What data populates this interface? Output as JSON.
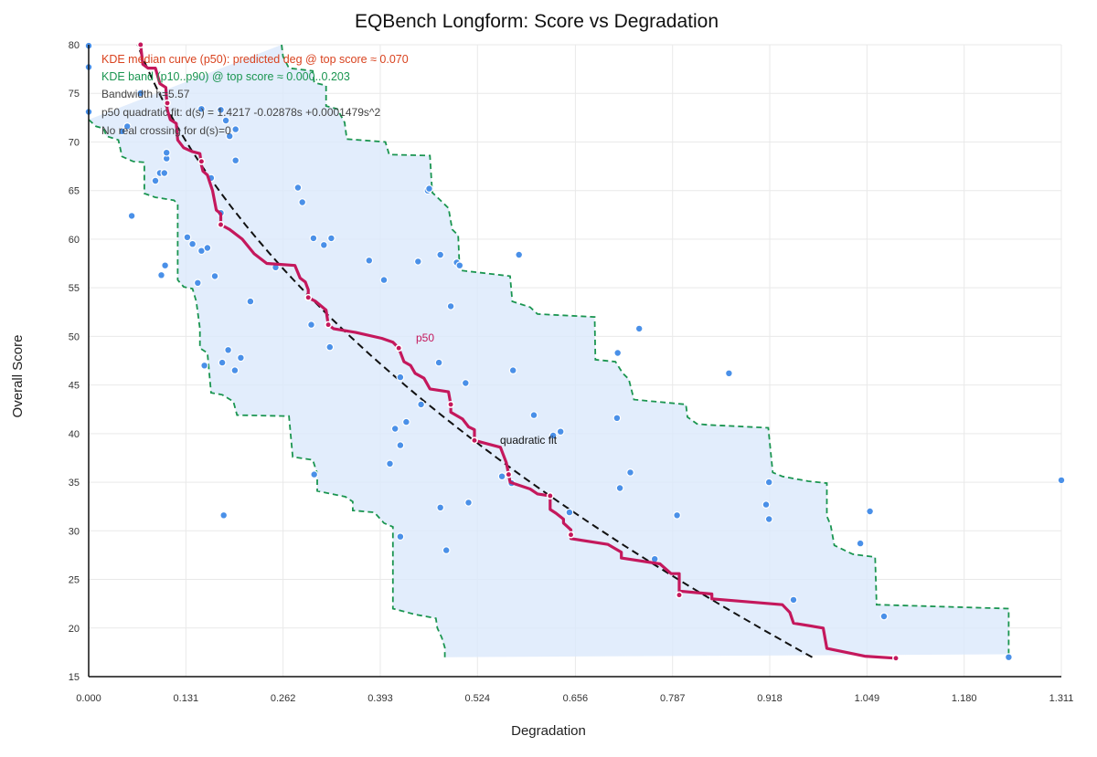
{
  "chart_data": {
    "type": "scatter",
    "title": "EQBench Longform: Score vs Degradation",
    "xlabel": "Degradation",
    "ylabel": "Overall Score",
    "xlim": [
      0,
      1.311
    ],
    "ylim": [
      15,
      80
    ],
    "x_ticks": [
      "0.000",
      "0.131",
      "0.262",
      "0.393",
      "0.524",
      "0.656",
      "0.787",
      "0.918",
      "1.049",
      "1.180",
      "1.311"
    ],
    "y_ticks": [
      "15",
      "20",
      "25",
      "30",
      "35",
      "40",
      "45",
      "50",
      "55",
      "60",
      "65",
      "70",
      "75",
      "80"
    ],
    "grid": true,
    "annotations": {
      "median": "KDE median curve (p50): predicted deg @ top score ≈ 0.070",
      "band": "KDE band (p10..p90) @ top score ≈ 0.000..0.203",
      "bandwidth": "Bandwidth h=5.57",
      "quadratic": "p50 quadratic fit: d(s) = 1.4217 -0.02878s +0.0001479s^2",
      "crossing": "No real crossing for d(s)=0",
      "p50_label": "p50",
      "fit_label": "quadratic fit"
    },
    "fit": {
      "a": 1.4217,
      "b": -0.02878,
      "c": 0.0001479,
      "s_from": 17,
      "s_to": 80
    },
    "points": [
      [
        0.0,
        79.9
      ],
      [
        0.0,
        77.7
      ],
      [
        0.0,
        73.1
      ],
      [
        0.045,
        71.1
      ],
      [
        0.052,
        71.6
      ],
      [
        0.07,
        75.0
      ],
      [
        0.058,
        62.4
      ],
      [
        0.09,
        66.0
      ],
      [
        0.096,
        66.8
      ],
      [
        0.102,
        66.8
      ],
      [
        0.105,
        68.3
      ],
      [
        0.105,
        68.9
      ],
      [
        0.098,
        56.3
      ],
      [
        0.103,
        57.3
      ],
      [
        0.133,
        60.2
      ],
      [
        0.14,
        59.5
      ],
      [
        0.152,
        58.8
      ],
      [
        0.16,
        59.1
      ],
      [
        0.147,
        55.5
      ],
      [
        0.165,
        66.3
      ],
      [
        0.17,
        56.2
      ],
      [
        0.178,
        62.7
      ],
      [
        0.185,
        72.2
      ],
      [
        0.19,
        70.6
      ],
      [
        0.198,
        71.3
      ],
      [
        0.198,
        68.1
      ],
      [
        0.152,
        73.4
      ],
      [
        0.178,
        73.3
      ],
      [
        0.156,
        47.0
      ],
      [
        0.18,
        47.3
      ],
      [
        0.188,
        48.6
      ],
      [
        0.197,
        46.5
      ],
      [
        0.205,
        47.8
      ],
      [
        0.218,
        53.6
      ],
      [
        0.182,
        31.6
      ],
      [
        0.252,
        57.1
      ],
      [
        0.282,
        65.3
      ],
      [
        0.288,
        63.8
      ],
      [
        0.3,
        51.2
      ],
      [
        0.303,
        60.1
      ],
      [
        0.317,
        59.4
      ],
      [
        0.327,
        60.1
      ],
      [
        0.325,
        48.9
      ],
      [
        0.304,
        35.8
      ],
      [
        0.378,
        57.8
      ],
      [
        0.398,
        55.8
      ],
      [
        0.406,
        36.9
      ],
      [
        0.413,
        40.5
      ],
      [
        0.42,
        38.8
      ],
      [
        0.42,
        29.4
      ],
      [
        0.42,
        45.8
      ],
      [
        0.428,
        41.2
      ],
      [
        0.444,
        57.7
      ],
      [
        0.448,
        43.0
      ],
      [
        0.457,
        65.0
      ],
      [
        0.459,
        65.2
      ],
      [
        0.472,
        47.3
      ],
      [
        0.474,
        58.4
      ],
      [
        0.474,
        32.4
      ],
      [
        0.482,
        28.0
      ],
      [
        0.488,
        53.1
      ],
      [
        0.496,
        57.6
      ],
      [
        0.5,
        57.3
      ],
      [
        0.508,
        45.2
      ],
      [
        0.512,
        32.9
      ],
      [
        0.557,
        35.6
      ],
      [
        0.57,
        34.9
      ],
      [
        0.572,
        46.5
      ],
      [
        0.58,
        58.4
      ],
      [
        0.6,
        41.9
      ],
      [
        0.626,
        39.8
      ],
      [
        0.636,
        40.2
      ],
      [
        0.648,
        31.9
      ],
      [
        0.713,
        48.3
      ],
      [
        0.712,
        41.6
      ],
      [
        0.716,
        34.4
      ],
      [
        0.73,
        36.0
      ],
      [
        0.742,
        50.8
      ],
      [
        0.763,
        27.1
      ],
      [
        0.793,
        31.6
      ],
      [
        0.863,
        46.2
      ],
      [
        0.913,
        32.7
      ],
      [
        0.917,
        35.0
      ],
      [
        0.917,
        31.2
      ],
      [
        0.95,
        22.9
      ],
      [
        1.04,
        28.7
      ],
      [
        1.053,
        32.0
      ],
      [
        1.072,
        21.2
      ],
      [
        1.24,
        17.0
      ],
      [
        1.311,
        35.2
      ]
    ],
    "median_curve": [
      [
        0.07,
        80.0
      ],
      [
        0.073,
        78.0
      ],
      [
        0.08,
        77.6
      ],
      [
        0.09,
        77.6
      ],
      [
        0.096,
        76.0
      ],
      [
        0.104,
        75.6
      ],
      [
        0.106,
        73.3
      ],
      [
        0.11,
        72.3
      ],
      [
        0.118,
        71.9
      ],
      [
        0.12,
        70.2
      ],
      [
        0.128,
        69.4
      ],
      [
        0.14,
        69.0
      ],
      [
        0.15,
        68.8
      ],
      [
        0.152,
        67.6
      ],
      [
        0.154,
        67.0
      ],
      [
        0.16,
        66.6
      ],
      [
        0.167,
        65.0
      ],
      [
        0.172,
        63.0
      ],
      [
        0.178,
        62.6
      ],
      [
        0.178,
        61.5
      ],
      [
        0.19,
        61.0
      ],
      [
        0.207,
        60.0
      ],
      [
        0.223,
        58.5
      ],
      [
        0.24,
        57.5
      ],
      [
        0.278,
        57.3
      ],
      [
        0.285,
        56.0
      ],
      [
        0.292,
        55.6
      ],
      [
        0.296,
        54.8
      ],
      [
        0.296,
        54.0
      ],
      [
        0.306,
        53.6
      ],
      [
        0.32,
        52.7
      ],
      [
        0.323,
        51.2
      ],
      [
        0.33,
        50.8
      ],
      [
        0.36,
        50.4
      ],
      [
        0.395,
        49.8
      ],
      [
        0.41,
        49.4
      ],
      [
        0.418,
        48.8
      ],
      [
        0.425,
        47.4
      ],
      [
        0.434,
        47.0
      ],
      [
        0.44,
        46.2
      ],
      [
        0.452,
        45.7
      ],
      [
        0.46,
        44.6
      ],
      [
        0.485,
        44.3
      ],
      [
        0.488,
        43.0
      ],
      [
        0.488,
        42.2
      ],
      [
        0.504,
        41.5
      ],
      [
        0.512,
        40.7
      ],
      [
        0.52,
        40.4
      ],
      [
        0.52,
        39.3
      ],
      [
        0.555,
        38.6
      ],
      [
        0.563,
        37.0
      ],
      [
        0.566,
        35.8
      ],
      [
        0.568,
        35.0
      ],
      [
        0.595,
        34.3
      ],
      [
        0.605,
        33.8
      ],
      [
        0.622,
        33.6
      ],
      [
        0.622,
        32.2
      ],
      [
        0.63,
        31.8
      ],
      [
        0.64,
        31.2
      ],
      [
        0.64,
        30.8
      ],
      [
        0.65,
        30.1
      ],
      [
        0.65,
        29.2
      ],
      [
        0.7,
        28.6
      ],
      [
        0.718,
        27.8
      ],
      [
        0.718,
        27.2
      ],
      [
        0.77,
        26.6
      ],
      [
        0.785,
        25.6
      ],
      [
        0.796,
        25.6
      ],
      [
        0.796,
        23.8
      ],
      [
        0.84,
        23.5
      ],
      [
        0.84,
        23.0
      ],
      [
        0.935,
        22.4
      ],
      [
        0.945,
        21.6
      ],
      [
        0.95,
        20.5
      ],
      [
        0.99,
        20.0
      ],
      [
        0.995,
        17.9
      ],
      [
        1.046,
        17.1
      ],
      [
        1.088,
        16.9
      ]
    ],
    "median_markers": [
      [
        0.07,
        80.0
      ],
      [
        0.106,
        74.0
      ],
      [
        0.152,
        68.0
      ],
      [
        0.178,
        61.5
      ],
      [
        0.296,
        54.0
      ],
      [
        0.323,
        51.2
      ],
      [
        0.418,
        48.8
      ],
      [
        0.488,
        43.0
      ],
      [
        0.52,
        39.3
      ],
      [
        0.566,
        35.8
      ],
      [
        0.622,
        33.6
      ],
      [
        0.65,
        29.6
      ],
      [
        0.796,
        23.4
      ],
      [
        1.088,
        16.9
      ]
    ],
    "band_upper": [
      [
        0.26,
        80.0
      ],
      [
        0.262,
        78.8
      ],
      [
        0.27,
        77.6
      ],
      [
        0.302,
        77.3
      ],
      [
        0.304,
        76.1
      ],
      [
        0.32,
        75.8
      ],
      [
        0.32,
        73.7
      ],
      [
        0.335,
        73.4
      ],
      [
        0.345,
        72.0
      ],
      [
        0.348,
        70.3
      ],
      [
        0.4,
        70.0
      ],
      [
        0.405,
        68.7
      ],
      [
        0.46,
        68.6
      ],
      [
        0.463,
        64.8
      ],
      [
        0.47,
        64.3
      ],
      [
        0.485,
        63.2
      ],
      [
        0.49,
        61.0
      ],
      [
        0.498,
        60.4
      ],
      [
        0.5,
        56.8
      ],
      [
        0.568,
        56.2
      ],
      [
        0.571,
        53.6
      ],
      [
        0.595,
        53.0
      ],
      [
        0.605,
        52.3
      ],
      [
        0.682,
        52.0
      ],
      [
        0.683,
        47.6
      ],
      [
        0.71,
        47.4
      ],
      [
        0.72,
        46.2
      ],
      [
        0.728,
        45.6
      ],
      [
        0.735,
        43.5
      ],
      [
        0.805,
        43.0
      ],
      [
        0.807,
        41.7
      ],
      [
        0.82,
        41.0
      ],
      [
        0.835,
        40.9
      ],
      [
        0.916,
        40.6
      ],
      [
        0.922,
        36.0
      ],
      [
        0.935,
        35.6
      ],
      [
        0.97,
        35.1
      ],
      [
        0.995,
        34.9
      ],
      [
        0.995,
        31.5
      ],
      [
        1.0,
        30.6
      ],
      [
        1.005,
        28.5
      ],
      [
        1.03,
        27.6
      ],
      [
        1.06,
        27.3
      ],
      [
        1.062,
        22.4
      ],
      [
        1.24,
        22.0
      ],
      [
        1.24,
        17.3
      ]
    ],
    "band_lower": [
      [
        0.0,
        72.3
      ],
      [
        0.01,
        71.6
      ],
      [
        0.02,
        71.4
      ],
      [
        0.024,
        70.6
      ],
      [
        0.04,
        70.2
      ],
      [
        0.045,
        68.5
      ],
      [
        0.06,
        68.0
      ],
      [
        0.075,
        67.9
      ],
      [
        0.075,
        64.7
      ],
      [
        0.09,
        64.3
      ],
      [
        0.115,
        64.0
      ],
      [
        0.12,
        63.6
      ],
      [
        0.12,
        55.8
      ],
      [
        0.128,
        55.1
      ],
      [
        0.14,
        54.9
      ],
      [
        0.145,
        53.6
      ],
      [
        0.15,
        50.8
      ],
      [
        0.15,
        48.8
      ],
      [
        0.16,
        48.3
      ],
      [
        0.165,
        44.2
      ],
      [
        0.18,
        44.0
      ],
      [
        0.195,
        43.3
      ],
      [
        0.2,
        41.9
      ],
      [
        0.27,
        41.8
      ],
      [
        0.275,
        37.6
      ],
      [
        0.302,
        37.3
      ],
      [
        0.308,
        35.9
      ],
      [
        0.308,
        34.1
      ],
      [
        0.346,
        33.5
      ],
      [
        0.356,
        33.0
      ],
      [
        0.356,
        32.1
      ],
      [
        0.385,
        31.9
      ],
      [
        0.398,
        30.8
      ],
      [
        0.41,
        30.4
      ],
      [
        0.41,
        22.0
      ],
      [
        0.44,
        21.4
      ],
      [
        0.468,
        21.0
      ],
      [
        0.47,
        20.0
      ],
      [
        0.476,
        19.0
      ],
      [
        0.48,
        18.0
      ],
      [
        0.48,
        17.0
      ]
    ]
  }
}
